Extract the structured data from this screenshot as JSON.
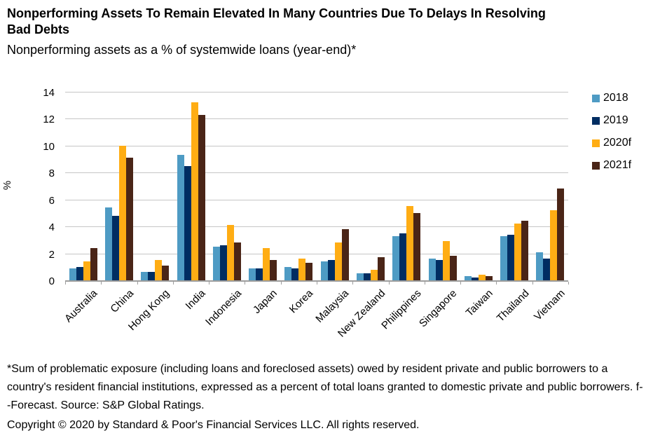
{
  "header": {
    "title": "Nonperforming Assets To Remain Elevated In Many Countries Due To Delays In Resolving Bad Debts",
    "subtitle": "Nonperforming assets as a % of systemwide loans (year-end)*"
  },
  "chart_data": {
    "type": "bar",
    "categories": [
      "Australia",
      "China",
      "Hong Kong",
      "India",
      "Indonesia",
      "Japan",
      "Korea",
      "Malaysia",
      "New Zealand",
      "Philippines",
      "Singapore",
      "Taiwan",
      "Thailand",
      "Vietnam"
    ],
    "series": [
      {
        "name": "2018",
        "color": "#4E9BC4",
        "values": [
          0.9,
          5.4,
          0.6,
          9.3,
          2.5,
          0.9,
          1.0,
          1.4,
          0.5,
          3.3,
          1.6,
          0.3,
          3.3,
          2.1
        ]
      },
      {
        "name": "2019",
        "color": "#002D62",
        "values": [
          1.0,
          4.8,
          0.6,
          8.5,
          2.6,
          0.9,
          0.9,
          1.5,
          0.5,
          3.5,
          1.5,
          0.2,
          3.4,
          1.6
        ]
      },
      {
        "name": "2020f",
        "color": "#FFAD14",
        "values": [
          1.4,
          10.0,
          1.5,
          13.2,
          4.1,
          2.4,
          1.6,
          2.8,
          0.8,
          5.5,
          2.9,
          0.4,
          4.2,
          5.2
        ]
      },
      {
        "name": "2021f",
        "color": "#4A2517",
        "values": [
          2.4,
          9.1,
          1.1,
          12.3,
          2.8,
          1.5,
          1.3,
          3.8,
          1.7,
          5.0,
          1.8,
          0.3,
          4.4,
          6.8
        ]
      }
    ],
    "title": "Nonperforming Assets To Remain Elevated In Many Countries Due To Delays In Resolving Bad Debts",
    "xlabel": "",
    "ylabel": "%",
    "ylim": [
      0,
      14
    ],
    "yticks": [
      0,
      2,
      4,
      6,
      8,
      10,
      12,
      14
    ],
    "grid": true,
    "legend_position": "right"
  },
  "footnote": {
    "note": "*Sum of problematic exposure (including loans and foreclosed assets) owed by resident private and public borrowers to a country's resident financial institutions, expressed as a percent of total loans granted to domestic private and public borrowers. f--Forecast. Source: S&P Global Ratings.",
    "copyright": "Copyright © 2020 by Standard & Poor's Financial Services LLC. All rights reserved."
  }
}
